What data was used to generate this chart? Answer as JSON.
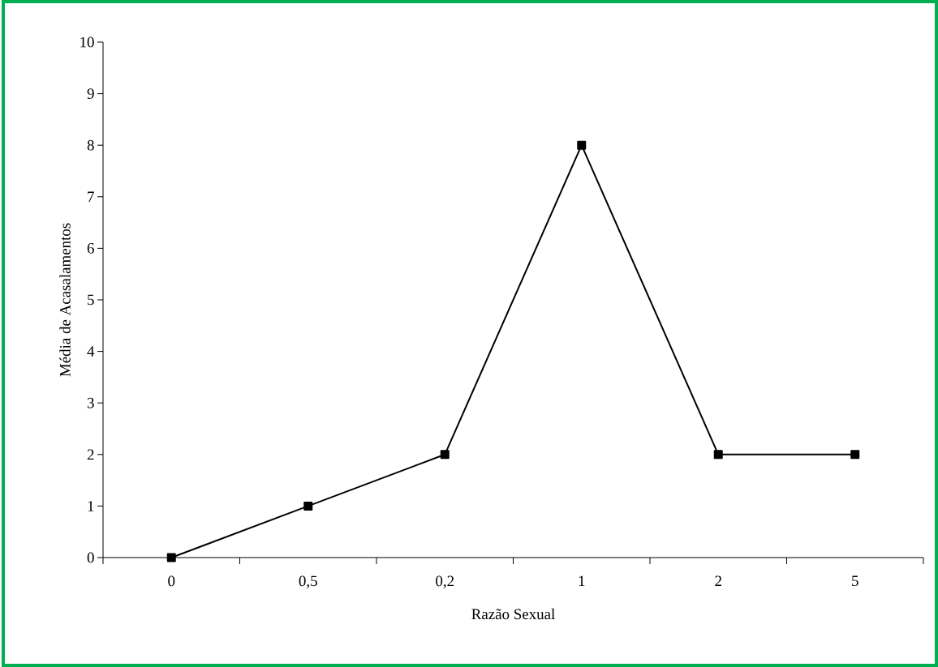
{
  "chart_data": {
    "type": "line",
    "xlabel": "Razão Sexual",
    "ylabel": "Média de Acasalamentos",
    "categories": [
      "0",
      "0,5",
      "0,2",
      "1",
      "2",
      "5"
    ],
    "series": [
      {
        "color": "#000000",
        "values": [
          0,
          1,
          2,
          8,
          2,
          2
        ]
      }
    ],
    "ylim": [
      0,
      10
    ],
    "yticks": [
      0,
      1,
      2,
      3,
      4,
      5,
      6,
      7,
      8,
      9,
      10
    ],
    "marker": "square",
    "line_style": "solid",
    "grid": false
  }
}
